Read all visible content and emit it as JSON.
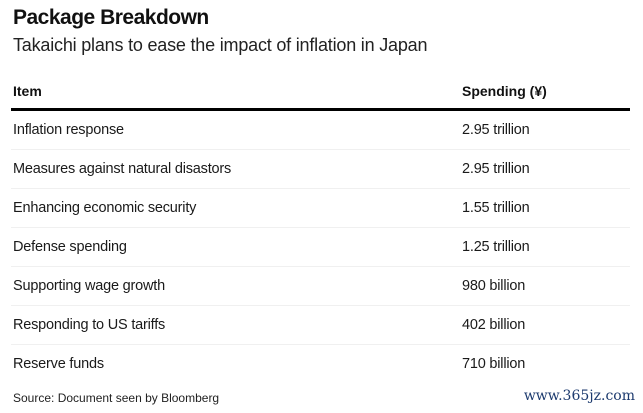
{
  "title": "Package Breakdown",
  "subtitle": "Takaichi plans to ease the impact of inflation in Japan",
  "table": {
    "headers": [
      "Item",
      "Spending (¥)"
    ],
    "rows": [
      {
        "item": "Inflation response",
        "spending": "2.95 trillion"
      },
      {
        "item": "Measures against natural disastors",
        "spending": "2.95 trillion"
      },
      {
        "item": "Enhancing economic security",
        "spending": "1.55 trillion"
      },
      {
        "item": "Defense spending",
        "spending": "1.25 trillion"
      },
      {
        "item": "Supporting wage growth",
        "spending": "980 billion"
      },
      {
        "item": "Responding to US tariffs",
        "spending": "402 billion"
      },
      {
        "item": "Reserve funds",
        "spending": "710 billion"
      }
    ]
  },
  "source": "Source: Document seen by Bloomberg",
  "watermark": "www.365jz.com"
}
